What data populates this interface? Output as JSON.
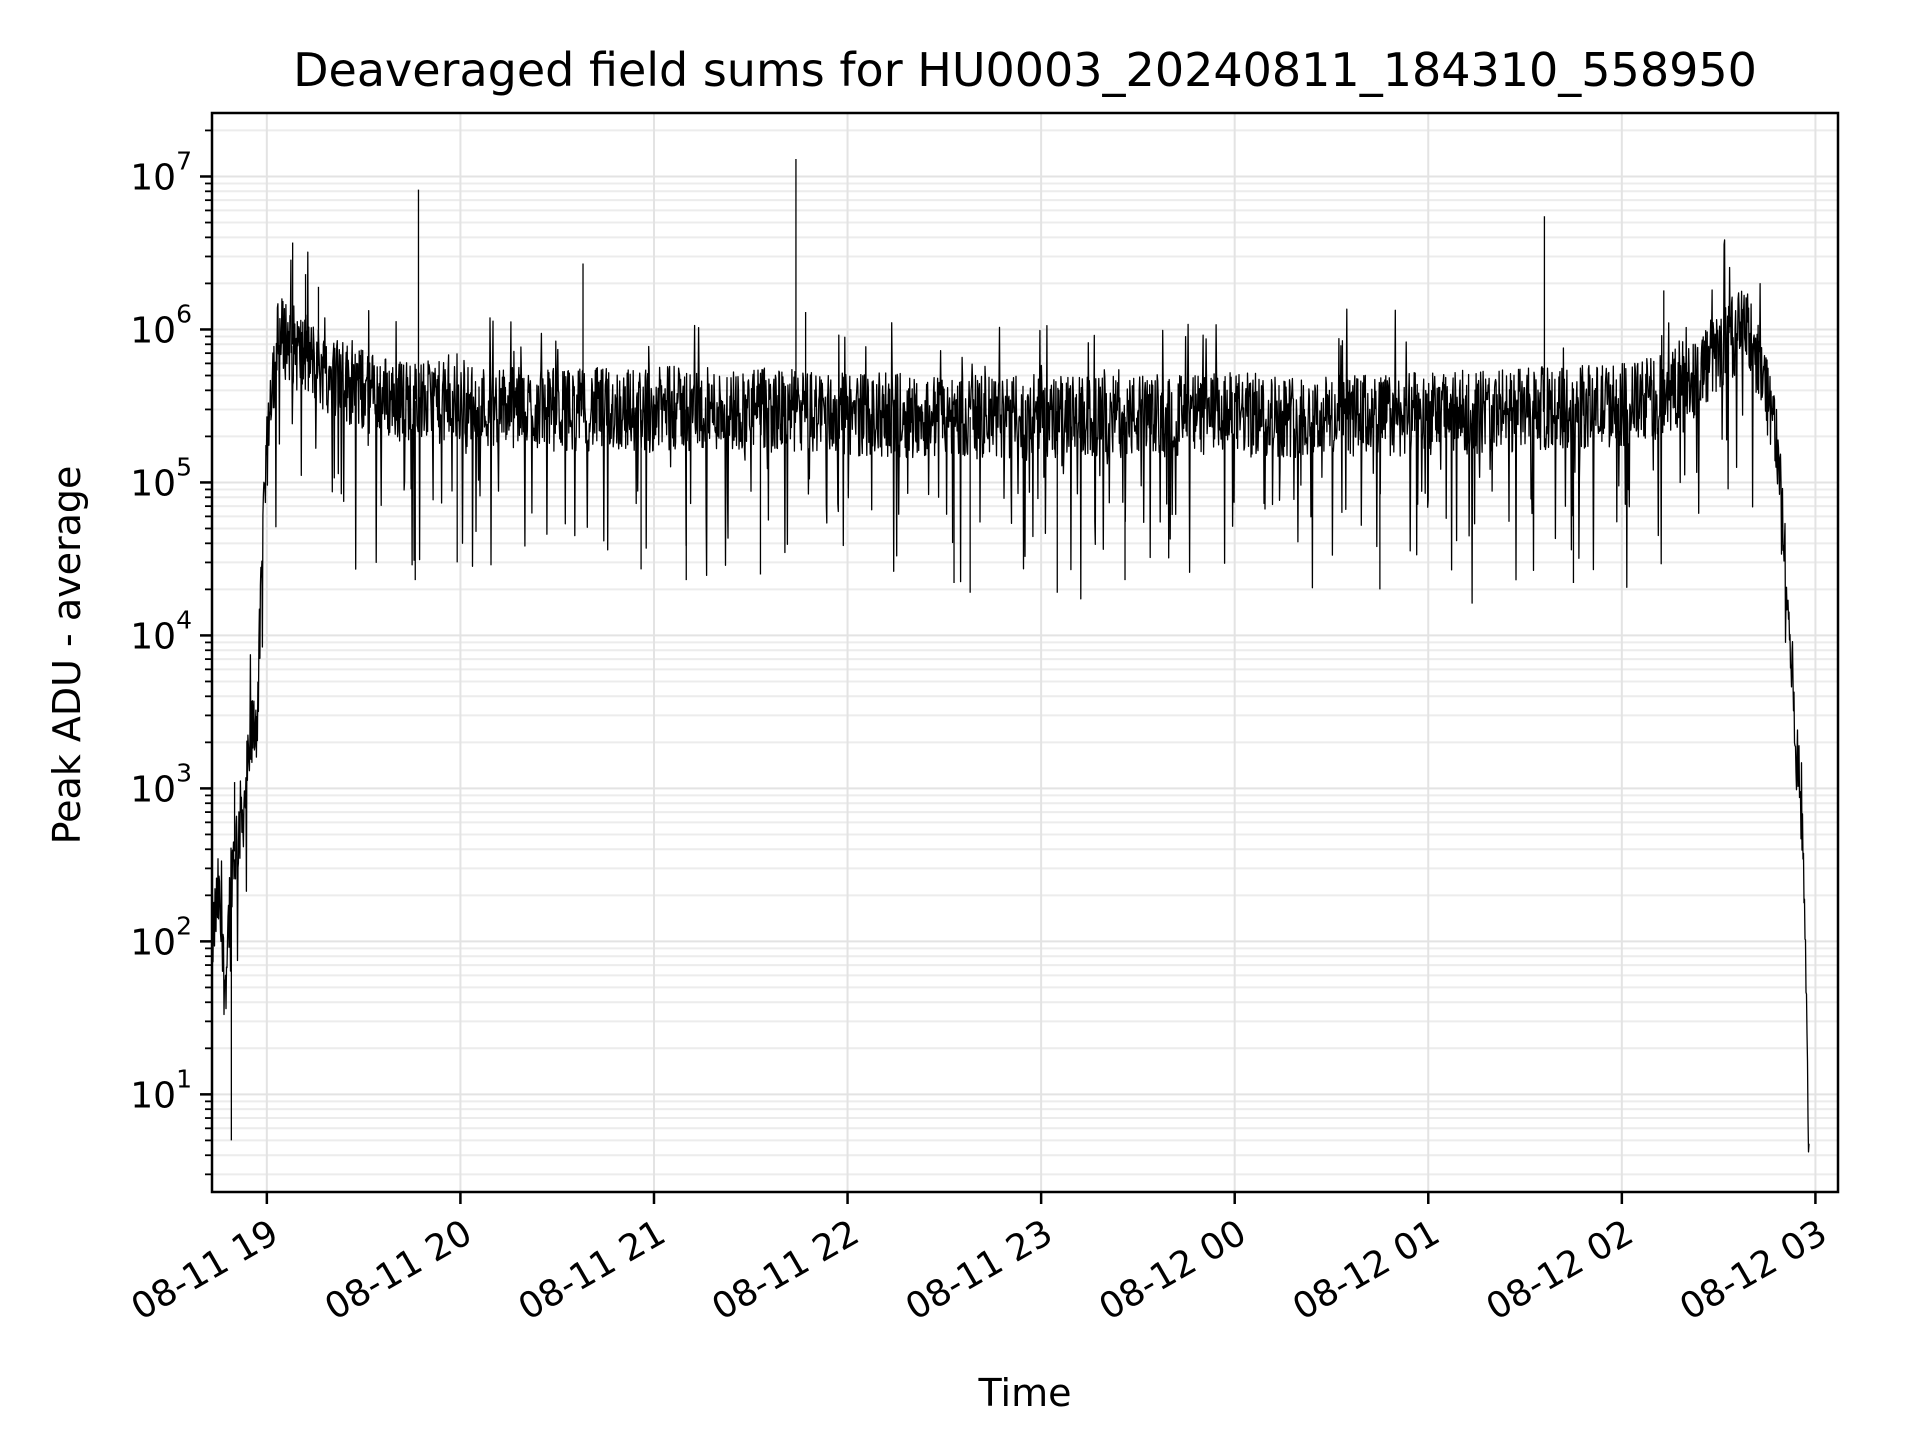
{
  "chart_data": {
    "type": "line",
    "title": "Deaveraged field sums for HU0003_20240811_184310_558950",
    "xlabel": "Time",
    "ylabel": "Peak ADU - average",
    "yscale": "log",
    "ylim": [
      2.3,
      26000000
    ],
    "xlim": [
      "2024-08-11 18:43",
      "2024-08-12 03:07"
    ],
    "grid": true,
    "x_ticks": [
      {
        "value": "2024-08-11 19:00",
        "label": "08-11 19"
      },
      {
        "value": "2024-08-11 20:00",
        "label": "08-11 20"
      },
      {
        "value": "2024-08-11 21:00",
        "label": "08-11 21"
      },
      {
        "value": "2024-08-11 22:00",
        "label": "08-11 22"
      },
      {
        "value": "2024-08-11 23:00",
        "label": "08-11 23"
      },
      {
        "value": "2024-08-12 00:00",
        "label": "08-12 00"
      },
      {
        "value": "2024-08-12 01:00",
        "label": "08-12 01"
      },
      {
        "value": "2024-08-12 02:00",
        "label": "08-12 02"
      },
      {
        "value": "2024-08-12 03:00",
        "label": "08-12 03"
      }
    ],
    "y_ticks": [
      {
        "value": 10,
        "base": "10",
        "exp": "1"
      },
      {
        "value": 100,
        "base": "10",
        "exp": "2"
      },
      {
        "value": 1000,
        "base": "10",
        "exp": "3"
      },
      {
        "value": 10000,
        "base": "10",
        "exp": "4"
      },
      {
        "value": 100000,
        "base": "10",
        "exp": "5"
      },
      {
        "value": 1000000,
        "base": "10",
        "exp": "6"
      },
      {
        "value": 10000000,
        "base": "10",
        "exp": "7"
      }
    ],
    "series": [
      {
        "color": "#000000",
        "x": [
          "2024-08-11 18:43",
          "2024-08-11 18:45",
          "2024-08-11 18:47",
          "2024-08-11 18:49",
          "2024-08-11 18:51",
          "2024-08-11 18:53",
          "2024-08-11 18:55",
          "2024-08-11 18:57",
          "2024-08-11 18:59",
          "2024-08-11 19:01",
          "2024-08-11 19:03",
          "2024-08-11 19:05",
          "2024-08-11 19:07",
          "2024-08-11 19:10",
          "2024-08-11 19:15",
          "2024-08-11 19:20",
          "2024-08-11 19:30",
          "2024-08-11 19:40",
          "2024-08-11 20:00",
          "2024-08-11 20:30",
          "2024-08-11 21:00",
          "2024-08-11 21:30",
          "2024-08-11 22:00",
          "2024-08-11 22:30",
          "2024-08-11 23:00",
          "2024-08-11 23:30",
          "2024-08-12 00:00",
          "2024-08-12 00:30",
          "2024-08-12 01:00",
          "2024-08-12 01:30",
          "2024-08-12 02:00",
          "2024-08-12 02:10",
          "2024-08-12 02:20",
          "2024-08-12 02:30",
          "2024-08-12 02:36",
          "2024-08-12 02:40",
          "2024-08-12 02:44",
          "2024-08-12 02:48",
          "2024-08-12 02:50",
          "2024-08-12 02:52",
          "2024-08-12 02:54",
          "2024-08-12 02:56",
          "2024-08-12 02:57",
          "2024-08-12 02:58"
        ],
        "y": [
          100,
          200,
          50,
          300,
          500,
          800,
          2000,
          3000,
          50000,
          400000,
          800000,
          900000,
          850000,
          700000,
          600000,
          500000,
          400000,
          350000,
          320000,
          300000,
          300000,
          300000,
          280000,
          270000,
          260000,
          270000,
          280000,
          270000,
          280000,
          300000,
          320000,
          350000,
          450000,
          700000,
          1000000,
          900000,
          500000,
          200000,
          50000,
          10000,
          2000,
          500,
          100,
          3
        ]
      }
    ],
    "spikes": [
      {
        "x": "2024-08-11 19:08",
        "y": 3700000
      },
      {
        "x": "2024-08-11 19:12",
        "y": 2300000
      },
      {
        "x": "2024-08-11 19:16",
        "y": 1900000
      },
      {
        "x": "2024-08-11 19:47",
        "y": 8200000
      },
      {
        "x": "2024-08-11 20:38",
        "y": 2700000
      },
      {
        "x": "2024-08-11 21:44",
        "y": 13000000
      },
      {
        "x": "2024-08-11 21:47",
        "y": 1300000
      },
      {
        "x": "2024-08-12 01:36",
        "y": 5500000
      },
      {
        "x": "2024-08-12 02:13",
        "y": 1800000
      },
      {
        "x": "2024-08-11 19:46",
        "y": 23000
      },
      {
        "x": "2024-08-11 19:59",
        "y": 30000
      },
      {
        "x": "2024-08-11 20:56",
        "y": 27000
      },
      {
        "x": "2024-08-11 21:10",
        "y": 23000
      },
      {
        "x": "2024-08-11 21:33",
        "y": 25000
      },
      {
        "x": "2024-08-11 22:33",
        "y": 22000
      },
      {
        "x": "2024-08-11 22:38",
        "y": 19000
      },
      {
        "x": "2024-08-11 23:05",
        "y": 19000
      },
      {
        "x": "2024-08-11 23:26",
        "y": 23000
      },
      {
        "x": "2024-08-12 00:45",
        "y": 20000
      },
      {
        "x": "2024-08-12 01:45",
        "y": 22000
      },
      {
        "x": "2024-08-11 18:49",
        "y": 5
      },
      {
        "x": "2024-08-11 18:50",
        "y": 1100
      }
    ]
  }
}
